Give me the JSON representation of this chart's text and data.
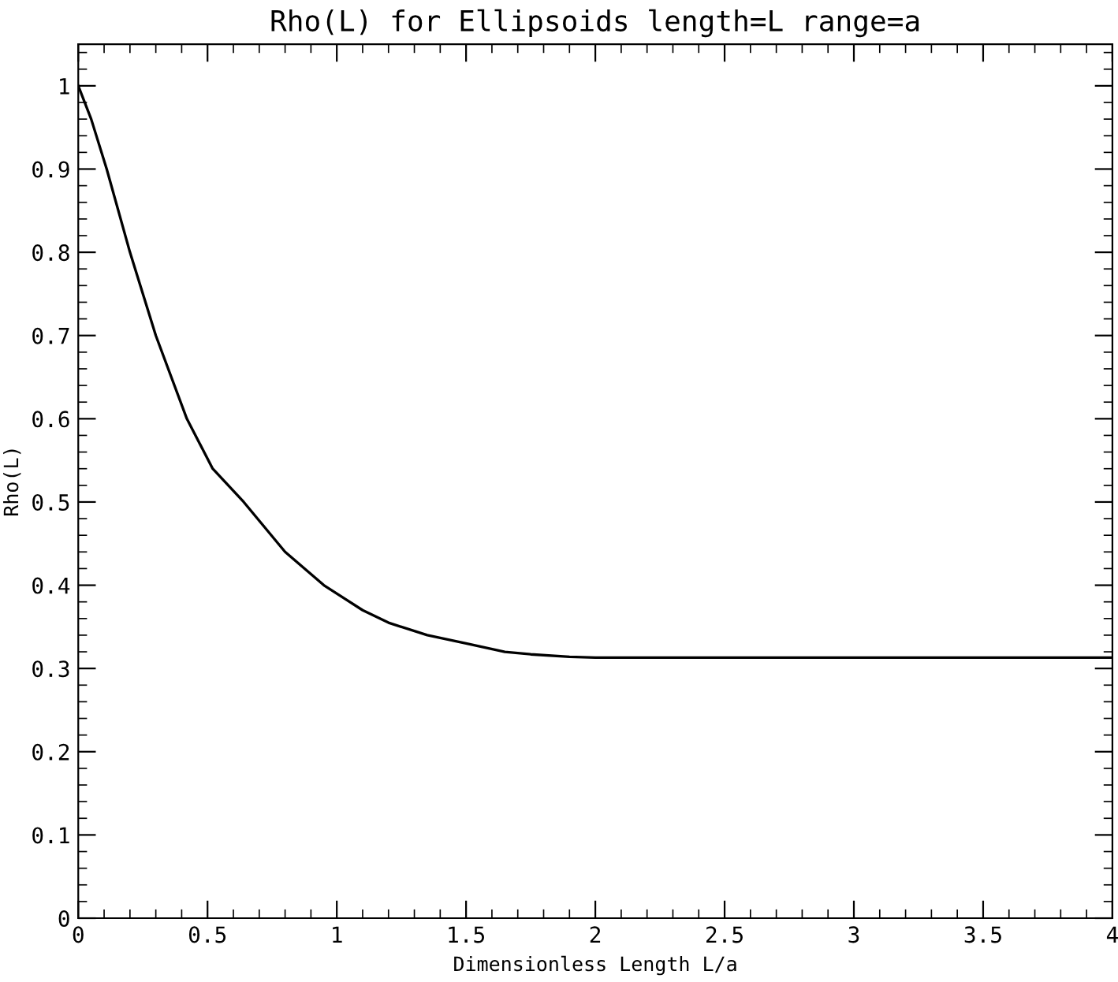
{
  "chart_data": {
    "type": "line",
    "title": "Rho(L) for Ellipsoids length=L range=a",
    "xlabel": "Dimensionless Length L/a",
    "ylabel": "Rho(L)",
    "x": [
      0,
      0.05,
      0.11,
      0.2,
      0.3,
      0.42,
      0.52,
      0.64,
      0.8,
      0.95,
      1.1,
      1.2,
      1.35,
      1.5,
      1.65,
      1.75,
      1.9,
      2.0,
      2.5,
      3.0,
      3.5,
      4.0
    ],
    "series": [
      {
        "color": "#000000",
        "values": [
          1.0,
          0.96,
          0.9,
          0.8,
          0.7,
          0.6,
          0.54,
          0.5,
          0.44,
          0.4,
          0.37,
          0.355,
          0.34,
          0.33,
          0.32,
          0.317,
          0.314,
          0.313,
          0.313,
          0.313,
          0.313,
          0.313
        ]
      }
    ],
    "xlim": [
      0,
      4
    ],
    "xticks": [
      0,
      0.5,
      1,
      1.5,
      2,
      2.5,
      3,
      3.5,
      4
    ],
    "ylim": [
      0,
      1.05
    ],
    "yticks": [
      0,
      0.1,
      0.2,
      0.3,
      0.4,
      0.5,
      0.6,
      0.7,
      0.8,
      0.9,
      1
    ],
    "grid": false,
    "legend": false,
    "marker": "none",
    "line_style": "solid"
  }
}
